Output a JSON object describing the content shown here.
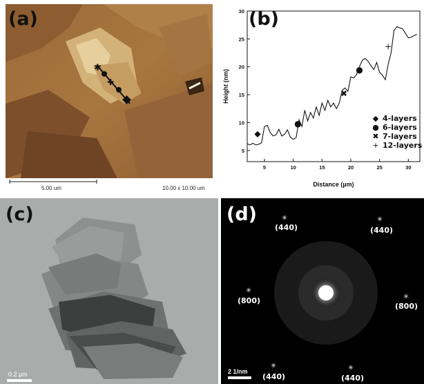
{
  "panels": {
    "a": {
      "label": "(a)",
      "scale_bar": "5.00 um",
      "scan_size": "10.00 x 10.00 um"
    },
    "b": {
      "label": "(b)"
    },
    "c": {
      "label": "(c)",
      "scale_bar": "0.2 µm"
    },
    "d": {
      "label": "(d)",
      "scale_bar": "2 1/nm",
      "spots": [
        {
          "label": "(440)"
        },
        {
          "label": "(4̄40)"
        },
        {
          "label": "(800)"
        },
        {
          "label": "(8̄00)"
        },
        {
          "label": "(44̄0)"
        },
        {
          "label": "(4̄4̄0)"
        }
      ]
    }
  },
  "chart_data": {
    "type": "line",
    "title": "",
    "xlabel": "Distance (µm)",
    "ylabel": "Height (nm)",
    "xlim": [
      2,
      32
    ],
    "ylim": [
      3,
      30
    ],
    "xticks": [
      5,
      10,
      15,
      20,
      25,
      30
    ],
    "yticks": [
      5,
      10,
      15,
      20,
      25,
      30
    ],
    "series": [
      {
        "x": [
          2.0,
          2.5,
          3.0,
          3.5,
          4.0,
          4.5,
          5.0,
          5.5,
          6.0,
          6.5,
          7.0,
          7.5,
          8.0,
          8.5,
          9.0,
          9.5,
          10.0,
          10.5,
          11.0,
          11.5,
          12.0,
          12.5,
          13.0,
          13.5,
          14.0,
          14.5,
          15.0,
          15.5,
          16.0,
          16.5,
          17.0,
          17.5,
          18.0,
          18.5,
          19.0,
          19.5,
          20.0,
          20.5,
          21.0,
          21.5,
          22.0,
          22.5,
          23.0,
          23.5,
          24.0,
          24.5,
          25.0,
          25.5,
          26.0,
          26.5,
          27.0,
          27.5,
          28.0,
          28.5,
          29.0,
          29.5,
          30.0,
          30.5,
          31.0,
          31.5
        ],
        "y": [
          6.2,
          6.0,
          6.3,
          6.0,
          6.1,
          6.4,
          9.3,
          9.5,
          8.2,
          7.6,
          7.8,
          8.8,
          7.6,
          7.9,
          8.7,
          7.4,
          7.0,
          7.3,
          10.5,
          9.3,
          12.2,
          10.3,
          11.8,
          10.8,
          12.8,
          11.3,
          13.5,
          12.2,
          14.0,
          12.8,
          13.5,
          12.5,
          13.5,
          15.8,
          16.2,
          15.6,
          18.2,
          18.0,
          18.6,
          20.0,
          21.2,
          21.5,
          21.0,
          20.2,
          19.5,
          20.8,
          19.0,
          18.5,
          17.7,
          20.5,
          22.5,
          26.5,
          27.2,
          27.0,
          26.8,
          26.0,
          25.2,
          25.3,
          25.6,
          25.8
        ]
      }
    ],
    "markers": [
      {
        "symbol": "◆",
        "x": 3.8,
        "y": 8.0
      },
      {
        "symbol": "●",
        "x": 10.8,
        "y": 9.8
      },
      {
        "symbol": "✖",
        "x": 18.8,
        "y": 15.2
      },
      {
        "symbol": "●",
        "x": 21.5,
        "y": 19.5
      },
      {
        "symbol": "+",
        "x": 26.5,
        "y": 23.6
      }
    ],
    "legend": {
      "placement": "bottom-right",
      "entries": [
        {
          "symbol": "◆",
          "label": "4-layers"
        },
        {
          "symbol": "●",
          "label": "6-layers"
        },
        {
          "symbol": "✖",
          "label": "7-layers"
        },
        {
          "symbol": "+",
          "label": "12-layers"
        }
      ]
    }
  }
}
